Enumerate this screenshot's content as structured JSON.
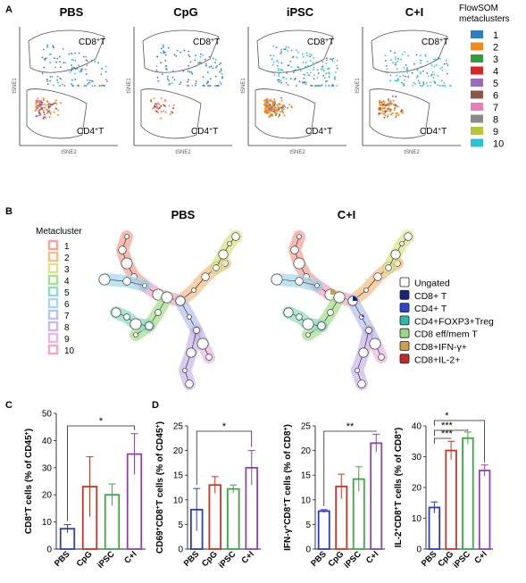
{
  "panel_labels": {
    "a": "A",
    "b": "B",
    "c": "C",
    "d": "D"
  },
  "tsne": {
    "panels": [
      {
        "title": "PBS",
        "cd8": "CD8",
        "cd4": "CD4"
      },
      {
        "title": "CpG",
        "cd8": "CD8",
        "cd4": "CD4"
      },
      {
        "title": "iPSC",
        "cd8": "CD8",
        "cd4": "CD4"
      },
      {
        "title": "C+I",
        "cd8": "CD8",
        "cd4": "CD4"
      }
    ],
    "sup": "+",
    "t": "T",
    "xlabel": "tSNE2",
    "ylabel": "tSNE1",
    "legend_title_1": "FlowSOM",
    "legend_title_2": "metaclusters",
    "clusters": [
      {
        "label": "1",
        "color": "#2f7fbf"
      },
      {
        "label": "2",
        "color": "#f08a1c"
      },
      {
        "label": "3",
        "color": "#2e9e3f"
      },
      {
        "label": "4",
        "color": "#d62728"
      },
      {
        "label": "5",
        "color": "#9b6ac0"
      },
      {
        "label": "6",
        "color": "#8c564b"
      },
      {
        "label": "7",
        "color": "#e87ec0"
      },
      {
        "label": "8",
        "color": "#8a8a8a"
      },
      {
        "label": "9",
        "color": "#b9c33a"
      },
      {
        "label": "10",
        "color": "#2bc3d3"
      }
    ]
  },
  "tree": {
    "titles": [
      "PBS",
      "C+I"
    ],
    "metacluster_title": "Metacluster",
    "metaclusters": [
      {
        "label": "1",
        "color": "#f3a59a"
      },
      {
        "label": "2",
        "color": "#f3c08a"
      },
      {
        "label": "3",
        "color": "#dfe28a"
      },
      {
        "label": "4",
        "color": "#a9dd8f"
      },
      {
        "label": "5",
        "color": "#8fdcc6"
      },
      {
        "label": "6",
        "color": "#a9d8ef"
      },
      {
        "label": "7",
        "color": "#b9c4ee"
      },
      {
        "label": "8",
        "color": "#cdb8ea"
      },
      {
        "label": "9",
        "color": "#eab8e6"
      },
      {
        "label": "10",
        "color": "#f3a9c4"
      }
    ],
    "population_legend": [
      {
        "label": "Ungated",
        "color": "#ffffff"
      },
      {
        "label": "CD8+ T",
        "color": "#1a237e"
      },
      {
        "label": "CD4+ T",
        "color": "#2a46c8"
      },
      {
        "label": "CD4+FOXP3+Treg",
        "color": "#2bb8a6"
      },
      {
        "label": "CD8 eff/mem T",
        "color": "#9ad88a"
      },
      {
        "label": "CD8+IFN-γ+",
        "color": "#c9a24a"
      },
      {
        "label": "CD8+IL-2+",
        "color": "#c62828"
      }
    ]
  },
  "chart_data": [
    {
      "type": "bar",
      "id": "C",
      "categories": [
        "PBS",
        "CpG",
        "iPSC",
        "C+I"
      ],
      "values": [
        7.5,
        23,
        20,
        35
      ],
      "errors": [
        1.5,
        11,
        4,
        7.5
      ],
      "ylim": [
        0,
        50
      ],
      "yticks": [
        0,
        10,
        20,
        30,
        40,
        50
      ],
      "ylabel_parts": [
        "CD8",
        "+",
        "T cells (% of CD45",
        "+",
        ")"
      ],
      "colors": [
        "#2d3fae",
        "#c0392b",
        "#3aa845",
        "#8e44ad"
      ],
      "significance": [
        {
          "from": 0,
          "to": 3,
          "label": "*"
        }
      ]
    },
    {
      "type": "bar",
      "id": "D1",
      "categories": [
        "PBS",
        "CpG",
        "iPSC",
        "C+I"
      ],
      "values": [
        8,
        13,
        12.2,
        16.5
      ],
      "errors": [
        4.3,
        1.7,
        0.8,
        3.5
      ],
      "ylim": [
        0,
        25
      ],
      "yticks": [
        0,
        5,
        10,
        15,
        20,
        25
      ],
      "ylabel_parts": [
        "CD69",
        "+",
        "CD8",
        "+",
        "T cells (% of CD45",
        "+",
        ")"
      ],
      "colors": [
        "#2d3fae",
        "#c0392b",
        "#3aa845",
        "#8e44ad"
      ],
      "significance": [
        {
          "from": 0,
          "to": 3,
          "label": "*"
        }
      ]
    },
    {
      "type": "bar",
      "id": "D2",
      "categories": [
        "PBS",
        "CpG",
        "iPSC",
        "C+I"
      ],
      "values": [
        7.7,
        12.7,
        14.2,
        21.5
      ],
      "errors": [
        0.3,
        2.5,
        2.5,
        1.8
      ],
      "ylim": [
        0,
        25
      ],
      "yticks": [
        0,
        5,
        10,
        15,
        20,
        25
      ],
      "ylabel_parts": [
        "IFN-γ",
        "+",
        "CD8",
        "+",
        "T cells (% of CD8",
        "+",
        ")"
      ],
      "colors": [
        "#2d3fae",
        "#c0392b",
        "#3aa845",
        "#8e44ad"
      ],
      "significance": [
        {
          "from": 0,
          "to": 3,
          "label": "**"
        }
      ]
    },
    {
      "type": "bar",
      "id": "D3",
      "categories": [
        "PBS",
        "CpG",
        "iPSC",
        "C+I"
      ],
      "values": [
        13.5,
        32,
        36,
        25.5
      ],
      "errors": [
        1.8,
        3,
        2,
        1.8
      ],
      "ylim": [
        0,
        40
      ],
      "yticks": [
        0,
        10,
        20,
        30,
        40
      ],
      "ylabel_parts": [
        "IL-2",
        "+",
        "CD8",
        "+",
        "T cells (% of CD8",
        "+",
        ")"
      ],
      "colors": [
        "#2d3fae",
        "#c0392b",
        "#3aa845",
        "#8e44ad"
      ],
      "significance": [
        {
          "from": 0,
          "to": 1,
          "label": "***"
        },
        {
          "from": 0,
          "to": 2,
          "label": "***"
        },
        {
          "from": 0,
          "to": 3,
          "label": "*"
        }
      ]
    }
  ]
}
